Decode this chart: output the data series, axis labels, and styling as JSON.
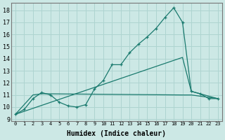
{
  "xlabel": "Humidex (Indice chaleur)",
  "bg_color": "#cce8e5",
  "grid_color": "#aed4d0",
  "line_color": "#1a7a6e",
  "xlim": [
    -0.5,
    23.5
  ],
  "ylim": [
    8.85,
    18.6
  ],
  "xticks": [
    0,
    1,
    2,
    3,
    4,
    5,
    6,
    7,
    8,
    9,
    10,
    11,
    12,
    13,
    14,
    15,
    16,
    17,
    18,
    19,
    20,
    21,
    22,
    23
  ],
  "yticks": [
    9,
    10,
    11,
    12,
    13,
    14,
    15,
    16,
    17,
    18
  ],
  "line1_x": [
    0,
    1,
    2,
    3,
    4,
    5,
    6,
    7,
    8,
    9,
    10,
    11,
    12,
    13,
    14,
    15,
    16,
    17,
    18,
    19,
    20,
    21,
    22,
    23
  ],
  "line1_y": [
    9.4,
    9.8,
    10.7,
    11.2,
    11.0,
    10.4,
    10.1,
    10.0,
    10.2,
    11.5,
    12.2,
    13.5,
    13.5,
    14.5,
    15.2,
    15.8,
    16.5,
    17.4,
    18.2,
    17.0,
    11.3,
    11.1,
    10.7,
    10.7
  ],
  "line2_x": [
    0,
    19,
    20,
    23
  ],
  "line2_y": [
    9.4,
    14.1,
    11.3,
    10.7
  ],
  "line3_x": [
    0,
    2,
    3,
    19,
    20,
    23
  ],
  "line3_y": [
    9.4,
    11.0,
    11.1,
    11.0,
    11.0,
    10.7
  ]
}
